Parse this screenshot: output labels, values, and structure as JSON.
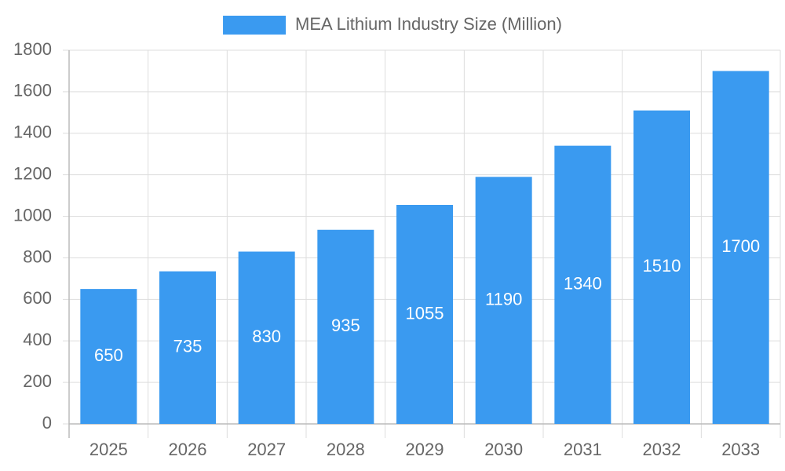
{
  "chart_data": {
    "type": "bar",
    "categories": [
      "2025",
      "2026",
      "2027",
      "2028",
      "2029",
      "2030",
      "2031",
      "2032",
      "2033"
    ],
    "series": [
      {
        "name": "MEA Lithium Industry Size (Million)",
        "color": "#3a9af0",
        "values": [
          650,
          735,
          830,
          935,
          1055,
          1190,
          1340,
          1510,
          1700
        ]
      }
    ],
    "ylim": [
      0,
      1800
    ],
    "yticks": [
      0,
      200,
      400,
      600,
      800,
      1000,
      1200,
      1400,
      1600,
      1800
    ],
    "grid": true,
    "legend": "top"
  }
}
